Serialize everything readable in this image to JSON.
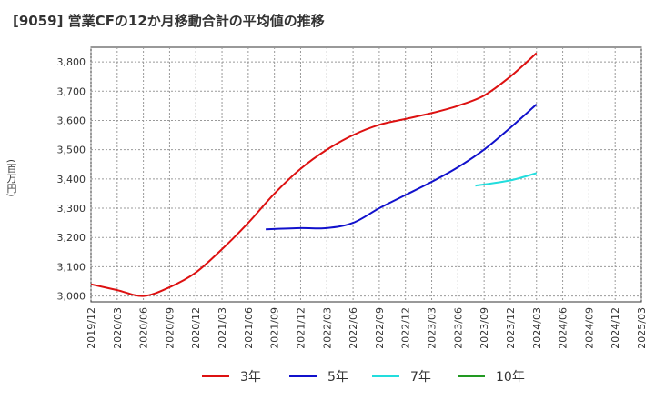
{
  "chart_data": {
    "type": "line",
    "title": "[9059]  営業CFの12か月移動合計の平均値の推移",
    "xlabel": "",
    "ylabel": "(百万円)",
    "ylim": [
      2980,
      3850
    ],
    "yticks": [
      3000,
      3100,
      3200,
      3300,
      3400,
      3500,
      3600,
      3700,
      3800
    ],
    "ytick_labels": [
      "3,000",
      "3,100",
      "3,200",
      "3,300",
      "3,400",
      "3,500",
      "3,600",
      "3,700",
      "3,800"
    ],
    "xlim": [
      "2019-12",
      "2025-03"
    ],
    "xtick_labels": [
      "2019/12",
      "2020/03",
      "2020/06",
      "2020/09",
      "2020/12",
      "2021/03",
      "2021/06",
      "2021/09",
      "2021/12",
      "2022/03",
      "2022/06",
      "2022/09",
      "2022/12",
      "2023/03",
      "2023/06",
      "2023/09",
      "2023/12",
      "2024/03",
      "2024/06",
      "2024/09",
      "2024/12",
      "2025/03"
    ],
    "grid": true,
    "legend_position": "bottom",
    "series": [
      {
        "name": "3年",
        "color": "#dd1111",
        "points": [
          [
            "2019-12",
            3040
          ],
          [
            "2020-03",
            3020
          ],
          [
            "2020-06",
            3000
          ],
          [
            "2020-09",
            3030
          ],
          [
            "2020-12",
            3080
          ],
          [
            "2021-03",
            3160
          ],
          [
            "2021-06",
            3250
          ],
          [
            "2021-09",
            3350
          ],
          [
            "2021-12",
            3435
          ],
          [
            "2022-03",
            3500
          ],
          [
            "2022-06",
            3550
          ],
          [
            "2022-09",
            3585
          ],
          [
            "2022-12",
            3605
          ],
          [
            "2023-03",
            3625
          ],
          [
            "2023-06",
            3650
          ],
          [
            "2023-09",
            3685
          ],
          [
            "2023-12",
            3750
          ],
          [
            "2024-03",
            3830
          ]
        ]
      },
      {
        "name": "5年",
        "color": "#1111cc",
        "points": [
          [
            "2021-08",
            3228
          ],
          [
            "2021-12",
            3232
          ],
          [
            "2022-03",
            3232
          ],
          [
            "2022-06",
            3250
          ],
          [
            "2022-09",
            3300
          ],
          [
            "2022-12",
            3345
          ],
          [
            "2023-03",
            3390
          ],
          [
            "2023-06",
            3440
          ],
          [
            "2023-09",
            3500
          ],
          [
            "2023-12",
            3575
          ],
          [
            "2024-03",
            3655
          ]
        ]
      },
      {
        "name": "7年",
        "color": "#22dddd",
        "points": [
          [
            "2023-08",
            3377
          ],
          [
            "2023-12",
            3395
          ],
          [
            "2024-03",
            3420
          ]
        ]
      },
      {
        "name": "10年",
        "color": "#229922",
        "points": []
      }
    ]
  }
}
